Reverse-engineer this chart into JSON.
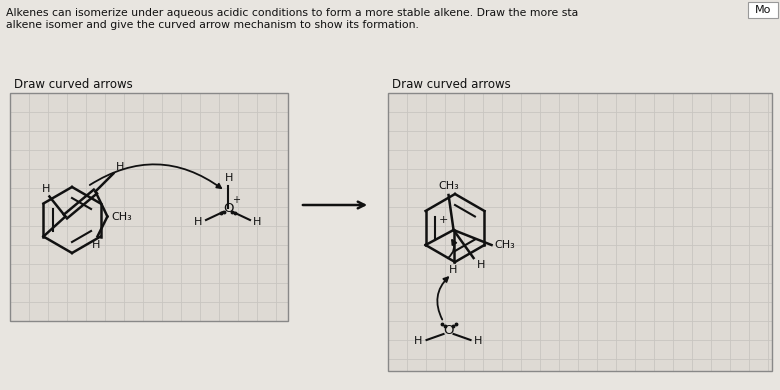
{
  "label_left": "Draw curved arrows",
  "label_right": "Draw curved arrows",
  "bg_color": "#e8e5e0",
  "grid_color": "#c8c5c0",
  "panel_bg": "#dedad4",
  "line_color": "#111111",
  "text_color": "#111111",
  "title_line1": "Alkenes can isomerize under aqueous acidic conditions to form a more stable alkene. Draw the more sta",
  "title_line2": "alkene isomer and give the curved arrow mechanism to show its formation.",
  "mo_label": "Mo"
}
